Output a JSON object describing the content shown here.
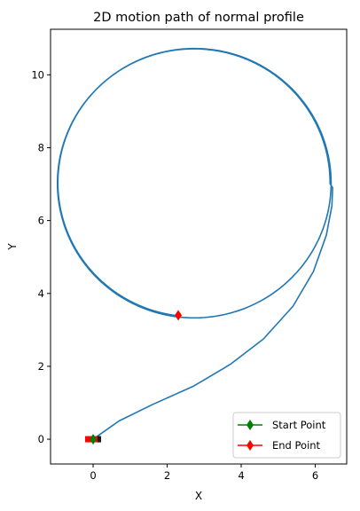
{
  "chart_data": {
    "type": "line",
    "title": "2D motion path of normal profile",
    "xlabel": "X",
    "ylabel": "Y",
    "xlim": [
      -1.15,
      6.85
    ],
    "ylim": [
      -0.68,
      11.25
    ],
    "xticks": [
      0,
      2,
      4,
      6
    ],
    "yticks": [
      0,
      2,
      4,
      6,
      8,
      10
    ],
    "grid": false,
    "legend_position": "lower right",
    "series": [
      {
        "path": {
          "start": [
            0.0,
            0.0
          ],
          "approach": [
            [
              0.0,
              0.0
            ],
            [
              0.7,
              0.5
            ],
            [
              1.6,
              0.95
            ],
            [
              2.7,
              1.45
            ],
            [
              3.7,
              2.05
            ],
            [
              4.6,
              2.75
            ],
            [
              5.4,
              3.65
            ],
            [
              5.95,
              4.6
            ],
            [
              6.3,
              5.6
            ],
            [
              6.45,
              6.4
            ],
            [
              6.47,
              6.9
            ]
          ],
          "circle_center": [
            2.73,
            7.03
          ],
          "circle_radius": 3.67,
          "end": [
            2.3,
            3.4
          ]
        },
        "color": "#1f77b4"
      }
    ],
    "markers": {
      "start": {
        "label": "Start Point",
        "x": 0.0,
        "y": 0.0,
        "color": "#008000"
      },
      "end": {
        "label": "End Point",
        "x": 2.3,
        "y": 3.4,
        "color": "#ff0000"
      }
    },
    "vehicle_marker": {
      "x": 0.0,
      "y": 0.0,
      "color": "#ff0000"
    }
  }
}
